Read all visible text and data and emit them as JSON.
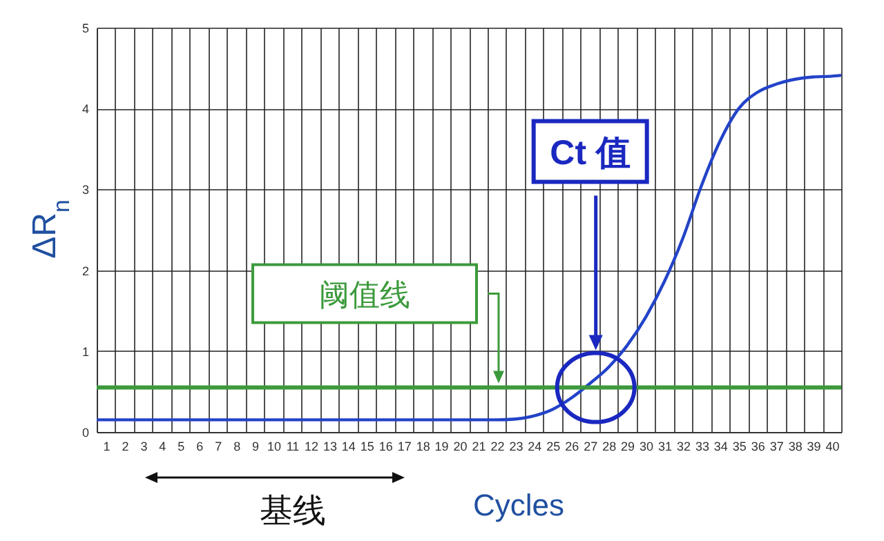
{
  "chart_data": {
    "type": "line",
    "xlabel": "Cycles",
    "ylabel": "ΔR$_{n}$",
    "x": [
      0.5,
      1,
      2,
      3,
      4,
      5,
      6,
      7,
      8,
      9,
      10,
      11,
      12,
      13,
      14,
      15,
      16,
      17,
      18,
      19,
      20,
      21,
      22,
      23,
      24,
      25,
      26,
      27,
      28,
      29,
      30,
      31,
      32,
      33,
      34,
      35,
      36,
      37,
      38,
      39,
      40,
      40.5
    ],
    "series": [
      {
        "color": "#2343c8",
        "values": [
          0.15,
          0.15,
          0.15,
          0.15,
          0.15,
          0.15,
          0.15,
          0.15,
          0.15,
          0.15,
          0.15,
          0.15,
          0.15,
          0.15,
          0.15,
          0.15,
          0.15,
          0.15,
          0.15,
          0.15,
          0.15,
          0.15,
          0.15,
          0.16,
          0.2,
          0.28,
          0.42,
          0.6,
          0.8,
          1.07,
          1.42,
          1.86,
          2.4,
          3.05,
          3.6,
          4.0,
          4.2,
          4.3,
          4.36,
          4.39,
          4.4,
          4.41
        ]
      }
    ],
    "xlim": [
      0.5,
      40.5
    ],
    "xticks": [
      1,
      2,
      3,
      4,
      5,
      6,
      7,
      8,
      9,
      10,
      11,
      12,
      13,
      14,
      15,
      16,
      17,
      18,
      19,
      20,
      21,
      22,
      23,
      24,
      25,
      26,
      27,
      28,
      29,
      30,
      31,
      32,
      33,
      34,
      35,
      36,
      37,
      38,
      39,
      40
    ],
    "ylim": [
      0,
      5
    ],
    "yticks": [
      0,
      1,
      2,
      3,
      4,
      5
    ],
    "grid": true,
    "ref_lines": [
      {
        "axis": "y",
        "value": 0.55,
        "label": "阈值线",
        "color": "#3c9a3c"
      }
    ],
    "annotations": [
      "Ct 值",
      "基线"
    ]
  }
}
